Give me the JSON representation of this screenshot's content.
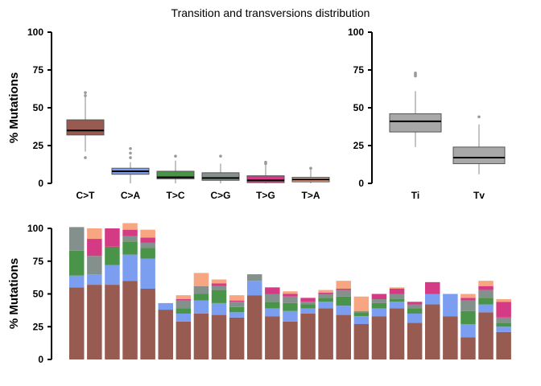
{
  "title": "Transition and transversions distribution",
  "colors": {
    "C>T": "#975b52",
    "C>A": "#7c9ef0",
    "T>C": "#4a9449",
    "C>G": "#84908c",
    "T>G": "#d53a84",
    "T>A": "#f8a582",
    "titv": "#a8a8a8"
  },
  "chart_data": [
    {
      "type": "box",
      "title": "Transition and transversions distribution",
      "ylabel": "% Mutations",
      "ylim": [
        0,
        100
      ],
      "yticks": [
        "0",
        "25",
        "50",
        "75",
        "100"
      ],
      "categories": [
        "C>T",
        "C>A",
        "T>C",
        "C>G",
        "T>G",
        "T>A"
      ],
      "boxes": [
        {
          "name": "C>T",
          "whisker_low": 21,
          "q1": 32,
          "median": 35,
          "q3": 42,
          "whisker_high": 57,
          "outliers": [
            17,
            58,
            60
          ]
        },
        {
          "name": "C>A",
          "whisker_low": 0,
          "q1": 6,
          "median": 8,
          "q3": 10,
          "whisker_high": 14,
          "outliers": [
            17,
            20,
            23
          ]
        },
        {
          "name": "T>C",
          "whisker_low": 0,
          "q1": 3,
          "median": 4,
          "q3": 8,
          "whisker_high": 15,
          "outliers": [
            18
          ]
        },
        {
          "name": "C>G",
          "whisker_low": 0,
          "q1": 2,
          "median": 3.5,
          "q3": 7,
          "whisker_high": 13,
          "outliers": [
            18
          ]
        },
        {
          "name": "T>G",
          "whisker_low": 0,
          "q1": 0.5,
          "median": 2,
          "q3": 5,
          "whisker_high": 12,
          "outliers": [
            13,
            14
          ]
        },
        {
          "name": "T>A",
          "whisker_low": 0,
          "q1": 1,
          "median": 2.5,
          "q3": 4,
          "whisker_high": 9,
          "outliers": [
            10
          ]
        }
      ]
    },
    {
      "type": "box",
      "ylim": [
        0,
        100
      ],
      "yticks": [
        "0",
        "25",
        "50",
        "75",
        "100"
      ],
      "categories": [
        "Ti",
        "Tv"
      ],
      "boxes": [
        {
          "name": "Ti",
          "whisker_low": 24,
          "q1": 34,
          "median": 41,
          "q3": 46,
          "whisker_high": 61,
          "outliers": [
            71,
            72,
            73
          ]
        },
        {
          "name": "Tv",
          "whisker_low": 6,
          "q1": 13,
          "median": 17,
          "q3": 24,
          "whisker_high": 39,
          "outliers": [
            44
          ]
        }
      ]
    },
    {
      "type": "bar",
      "stacked": true,
      "ylabel": "% Mutations",
      "ylim": [
        0,
        100
      ],
      "yticks": [
        "0",
        "25",
        "50",
        "75",
        "100"
      ],
      "series": [
        {
          "name": "C>T",
          "values": [
            55,
            57,
            57,
            60,
            54,
            38,
            29,
            35,
            34,
            32,
            49,
            33,
            29,
            35,
            39,
            34,
            27,
            33,
            39,
            28,
            42,
            33,
            17,
            36,
            21
          ]
        },
        {
          "name": "C>A",
          "values": [
            9,
            8,
            15,
            20,
            23,
            5,
            6,
            10,
            9,
            4,
            11,
            6,
            8,
            4,
            5,
            7,
            6,
            6,
            5,
            7,
            8,
            17,
            10,
            6,
            4
          ]
        },
        {
          "name": "T>C",
          "values": [
            19,
            0,
            14,
            10,
            8,
            0,
            4,
            5,
            10,
            4,
            0,
            5,
            6,
            3,
            3,
            7,
            3,
            4,
            2,
            4,
            0,
            0,
            10,
            5,
            3
          ]
        },
        {
          "name": "C>G",
          "values": [
            18,
            14,
            0,
            4,
            4,
            0,
            6,
            6,
            3,
            4,
            5,
            6,
            5,
            2,
            3,
            5,
            1,
            3,
            4,
            3,
            0,
            0,
            8,
            6,
            4
          ]
        },
        {
          "name": "T>G",
          "values": [
            0,
            13,
            14,
            5,
            4,
            0,
            1,
            0,
            2,
            1,
            0,
            5,
            2,
            3,
            1,
            1,
            0,
            4,
            4,
            2,
            9,
            0,
            2,
            3,
            12
          ]
        },
        {
          "name": "T>A",
          "values": [
            0,
            8,
            0,
            5,
            6,
            0,
            3,
            10,
            3,
            4,
            0,
            0,
            2,
            0,
            2,
            6,
            11,
            0,
            1,
            0,
            0,
            0,
            3,
            4,
            2
          ]
        }
      ]
    }
  ]
}
